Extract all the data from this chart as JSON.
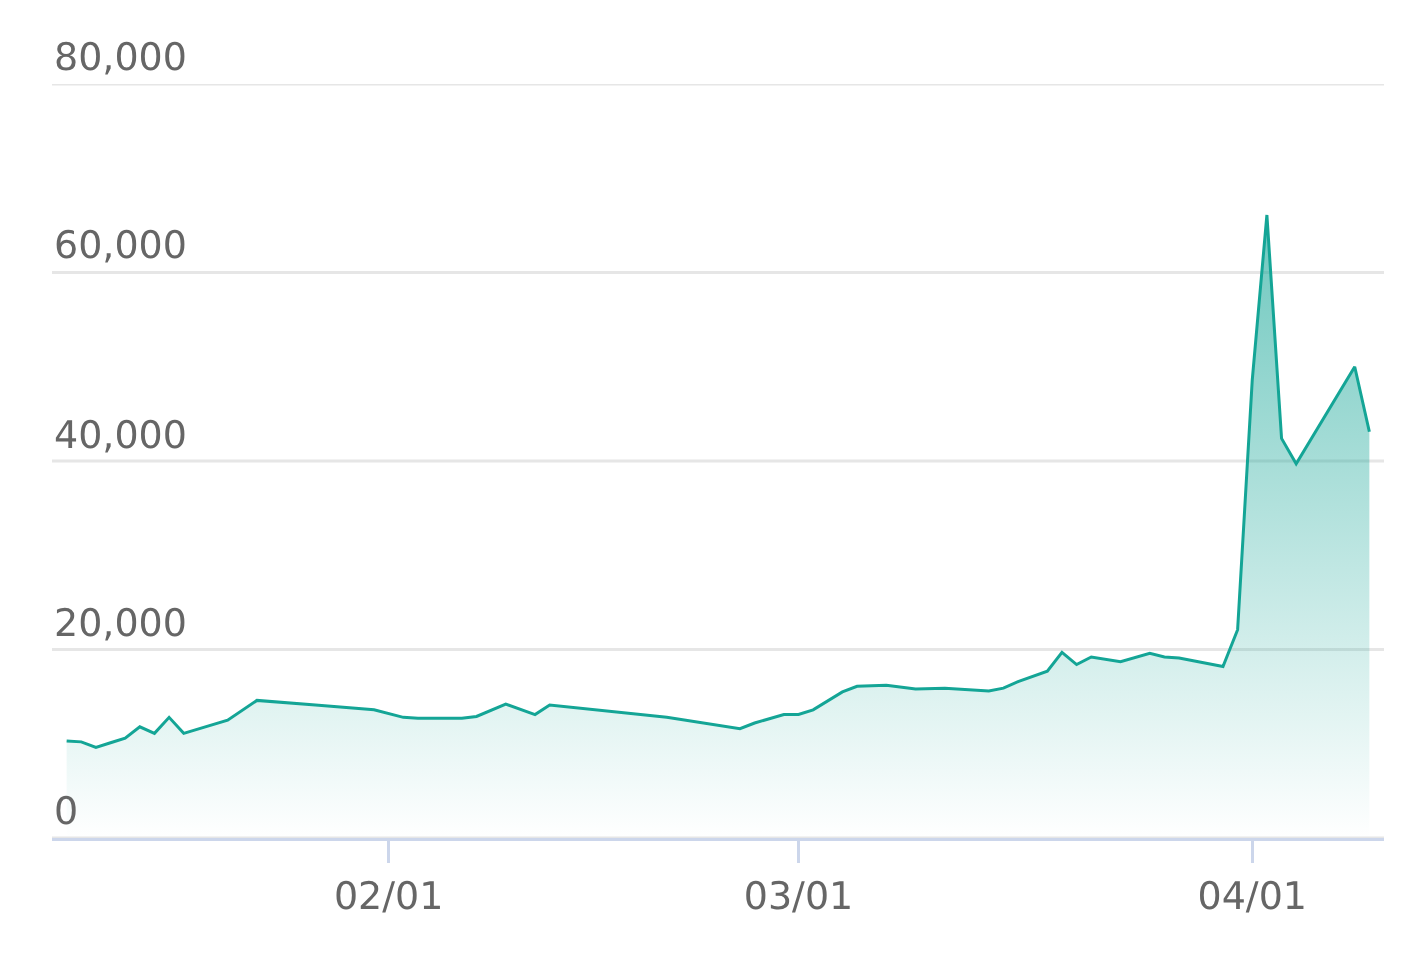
{
  "chart_data": {
    "type": "area",
    "color": "#14a596",
    "x": [
      "--01-10",
      "--01-11",
      "--01-12",
      "--01-13",
      "--01-14",
      "--01-15",
      "--01-16",
      "--01-17",
      "--01-18",
      "--01-21",
      "--01-23",
      "--01-27",
      "--01-31",
      "--02-02",
      "--02-03",
      "--02-06",
      "--02-07",
      "--02-09",
      "--02-11",
      "--02-12",
      "--02-20",
      "--02-25",
      "--02-26",
      "--02-28",
      "--03-01",
      "--03-02",
      "--03-04",
      "--03-05",
      "--03-07",
      "--03-09",
      "--03-11",
      "--03-14",
      "--03-15",
      "--03-16",
      "--03-18",
      "--03-19",
      "--03-20",
      "--03-21",
      "--03-23",
      "--03-25",
      "--03-26",
      "--03-27",
      "--03-30",
      "--03-31",
      "--04-01",
      "--04-02",
      "--04-03",
      "--04-04",
      "--04-08",
      "--04-09"
    ],
    "values": [
      10300,
      10200,
      9600,
      10100,
      10600,
      11800,
      11100,
      12800,
      11100,
      12500,
      14600,
      14100,
      13600,
      12800,
      12700,
      12700,
      12900,
      14200,
      13100,
      14100,
      12800,
      11600,
      12200,
      13100,
      13100,
      13600,
      15500,
      16100,
      16200,
      15800,
      15900,
      15600,
      15900,
      16600,
      17700,
      19700,
      18400,
      19200,
      18700,
      19600,
      19200,
      19100,
      18200,
      22100,
      48600,
      66100,
      42400,
      39700,
      50000,
      43100
    ],
    "xlim": [
      "--01-09",
      "--04-10"
    ],
    "xticks": [
      {
        "value": "--02-01",
        "label": "02/01"
      },
      {
        "value": "--03-01",
        "label": "03/01"
      },
      {
        "value": "--04-01",
        "label": "04/01"
      }
    ],
    "ylim": [
      0,
      80000
    ],
    "yticks": [
      0,
      {
        "value": 20000,
        "label": "20,000"
      },
      {
        "value": 40000,
        "label": "40,000"
      },
      {
        "value": 60000,
        "label": "60,000"
      },
      {
        "value": 80000,
        "label": "80,000"
      }
    ],
    "grid": "y"
  }
}
